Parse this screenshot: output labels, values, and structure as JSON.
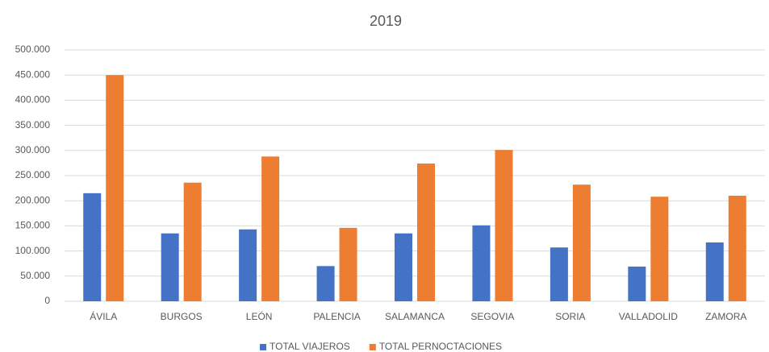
{
  "chart_data": {
    "type": "bar",
    "title": "2019",
    "categories": [
      "ÁVILA",
      "BURGOS",
      "LEÓN",
      "PALENCIA",
      "SALAMANCA",
      "SEGOVIA",
      "SORIA",
      "VALLADOLID",
      "ZAMORA"
    ],
    "series": [
      {
        "name": "TOTAL VIAJEROS",
        "color": "#4472c4",
        "values": [
          215000,
          135000,
          143000,
          70000,
          135000,
          151000,
          107000,
          69000,
          117000
        ]
      },
      {
        "name": "TOTAL PERNOCTACIONES",
        "color": "#ed7d31",
        "values": [
          450000,
          236000,
          288000,
          146000,
          274000,
          301000,
          232000,
          208000,
          210000
        ]
      }
    ],
    "ylim": [
      0,
      500000
    ],
    "yticks": [
      0,
      {
        "value": 50000,
        "label": "50.000"
      },
      {
        "value": 100000,
        "label": "100.000"
      },
      {
        "value": 150000,
        "label": "150.000"
      },
      {
        "value": 200000,
        "label": "200.000"
      },
      {
        "value": 250000,
        "label": "250.000"
      },
      {
        "value": 300000,
        "label": "300.000"
      },
      {
        "value": 350000,
        "label": "350.000"
      },
      {
        "value": 400000,
        "label": "400.000"
      },
      {
        "value": 450000,
        "label": "450.000"
      },
      {
        "value": 500000,
        "label": "500.000"
      }
    ],
    "grid": true,
    "legend": "bottom"
  }
}
